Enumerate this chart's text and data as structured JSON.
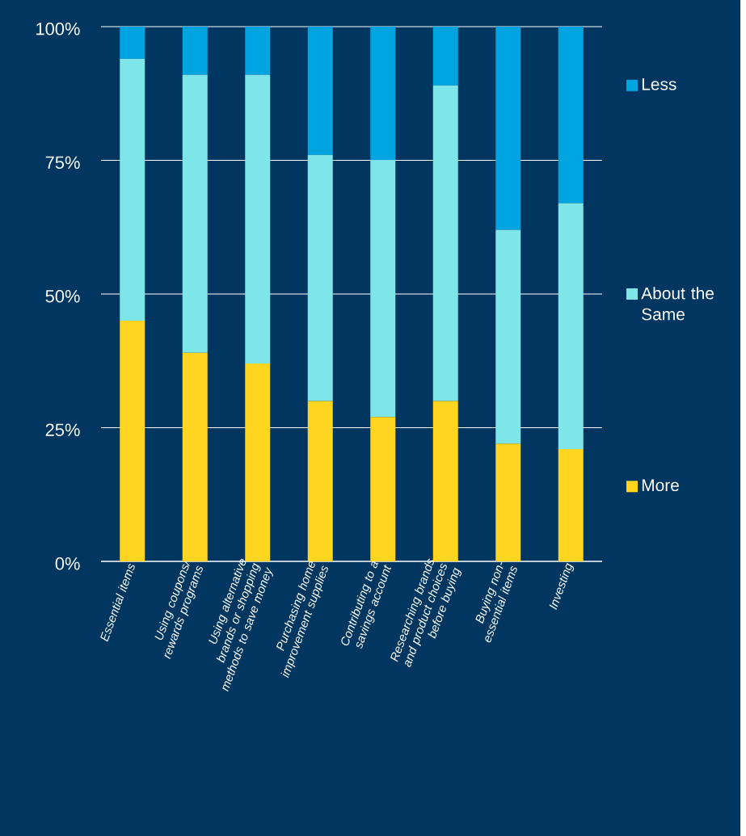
{
  "chart_data": {
    "type": "bar",
    "stacked": true,
    "categories": [
      "Essential items",
      "Using coupons/ rewards programs",
      "Using alternative brands or shopping methods to save money",
      "Purchasing home improvement supplies",
      "Contributing to a savings account",
      "Researching brands and product choices before buying",
      "Buying non-essential items",
      "Investing"
    ],
    "series": [
      {
        "name": "More",
        "color": "#ffd520",
        "values": [
          45,
          39,
          37,
          30,
          27,
          30,
          22,
          21
        ]
      },
      {
        "name": "About the Same",
        "color": "#7ee5e8",
        "values": [
          49,
          52,
          54,
          46,
          48,
          59,
          40,
          46
        ]
      },
      {
        "name": "Less",
        "color": "#00a4e0",
        "values": [
          6,
          9,
          9,
          24,
          25,
          11,
          38,
          33
        ]
      }
    ],
    "ylim": [
      0,
      100
    ],
    "yticks": [
      {
        "value": 0,
        "label": "0%"
      },
      {
        "value": 25,
        "label": "25%"
      },
      {
        "value": 50,
        "label": "50%"
      },
      {
        "value": 75,
        "label": "75%"
      },
      {
        "value": 100,
        "label": "100%"
      }
    ],
    "grid": "y",
    "legend": "right"
  }
}
